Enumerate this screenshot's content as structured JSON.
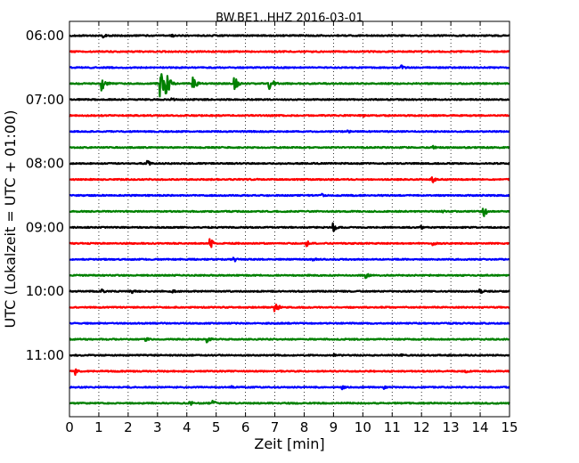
{
  "chart_data": {
    "type": "line",
    "title": "BW.BE1..HHZ 2016-03-01",
    "xlabel": "Zeit  [min]",
    "ylabel": "UTC (Lokalzeit = UTC + 01:00)",
    "xlim": [
      0,
      15
    ],
    "x_ticks": [
      "0",
      "1",
      "2",
      "3",
      "4",
      "5",
      "6",
      "7",
      "8",
      "9",
      "10",
      "11",
      "12",
      "13",
      "14",
      "15"
    ],
    "y_ticks": [
      "06:00",
      "07:00",
      "08:00",
      "09:00",
      "10:00",
      "11:00"
    ],
    "grid": "vertical dotted",
    "trace_interval_minutes": 15,
    "start_time": "06:00",
    "colors": [
      "#000000",
      "#ff0000",
      "#0000ff",
      "#008000"
    ],
    "series": [
      {
        "values": [
          [
            1.15,
            0.2
          ],
          [
            3.5,
            0.12
          ]
        ]
      },
      {
        "values": []
      },
      {
        "values": [
          [
            11.3,
            0.2
          ]
        ]
      },
      {
        "values": [
          [
            1.1,
            0.65
          ],
          [
            3.1,
            1.0
          ],
          [
            3.3,
            1.0
          ],
          [
            4.2,
            0.55
          ],
          [
            5.6,
            0.6
          ],
          [
            6.8,
            0.75
          ]
        ]
      },
      {
        "values": [
          [
            3.5,
            0.12
          ]
        ]
      },
      {
        "values": [
          [
            10.0,
            0.12
          ]
        ]
      },
      {
        "values": [
          [
            9.5,
            0.1
          ]
        ]
      },
      {
        "values": [
          [
            12.4,
            0.12
          ]
        ]
      },
      {
        "values": [
          [
            2.65,
            0.25
          ]
        ]
      },
      {
        "values": [
          [
            12.35,
            0.3
          ]
        ]
      },
      {
        "values": [
          [
            8.6,
            0.12
          ]
        ]
      },
      {
        "values": [
          [
            12.7,
            0.12
          ],
          [
            14.1,
            0.45
          ]
        ]
      },
      {
        "values": [
          [
            9.0,
            0.3
          ],
          [
            12.0,
            0.12
          ]
        ]
      },
      {
        "values": [
          [
            4.8,
            0.35
          ],
          [
            8.1,
            0.2
          ],
          [
            12.4,
            0.15
          ]
        ]
      },
      {
        "values": [
          [
            5.6,
            0.2
          ],
          [
            8.3,
            0.15
          ]
        ]
      },
      {
        "values": [
          [
            10.1,
            0.2
          ]
        ]
      },
      {
        "values": [
          [
            1.1,
            0.15
          ],
          [
            2.1,
            0.2
          ],
          [
            3.5,
            0.15
          ],
          [
            14.0,
            0.25
          ]
        ]
      },
      {
        "values": [
          [
            7.0,
            0.5
          ]
        ]
      },
      {
        "values": []
      },
      {
        "values": [
          [
            2.6,
            0.15
          ],
          [
            4.7,
            0.25
          ]
        ]
      },
      {
        "values": [
          [
            9.0,
            0.12
          ],
          [
            11.3,
            0.15
          ]
        ]
      },
      {
        "values": [
          [
            0.2,
            0.25
          ],
          [
            13.5,
            0.12
          ]
        ]
      },
      {
        "values": [
          [
            5.5,
            0.15
          ],
          [
            9.3,
            0.15
          ],
          [
            10.7,
            0.15
          ]
        ]
      },
      {
        "values": [
          [
            4.1,
            0.2
          ],
          [
            4.9,
            0.2
          ]
        ]
      }
    ]
  }
}
